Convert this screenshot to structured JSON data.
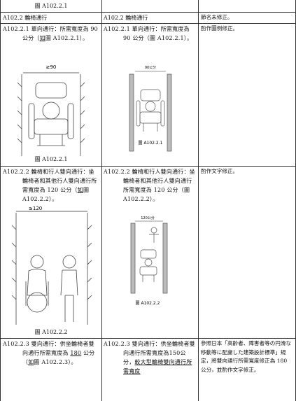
{
  "table": {
    "rows": [
      {
        "old": {
          "caption": "圖 A102.2.1"
        }
      },
      {
        "old": {
          "text": "A102.2 輪椅通行"
        },
        "new": {
          "text": "A102.2 輪椅通行"
        },
        "note": "節名未修正。"
      },
      {
        "old": {
          "segments": [
            "A102.2.1 單向通行：所需寬度為 90 公分（",
            "如",
            "圖 A102.2.1）。"
          ],
          "figure_label": "≥90",
          "caption": "圖 A102.2.1"
        },
        "new": {
          "segments": [
            "A102.2.1 單向通行：所需寬度為 90 公分（圖 A102.2.1）。"
          ],
          "figure_label": "90公分",
          "caption": "圖 A102.2.1"
        },
        "note": "酌作圖例修正。"
      },
      {
        "old": {
          "segments": [
            "A102.2.2 輪椅和行人雙向通行：坐輪椅者和其他行人雙向通行所需寬度為 120 公分（",
            "如",
            "圖 A102.2.2）。"
          ],
          "figure_label": "≥120",
          "caption": "圖 A102.2.2"
        },
        "new": {
          "segments": [
            "A102.2.2 輪椅和行人雙向通行：坐輪椅者和其他行人雙向通行所需寬度為 120 公分（圖 A102.2.2）。"
          ],
          "figure_label": "120公分",
          "caption": "圖 A102.2.2"
        },
        "note": "酌作文字修正。"
      },
      {
        "old": {
          "segments": [
            "A102.2.3 雙向通行：供坐輪椅者雙向通行所需寬度為 ",
            "180",
            " 公分（",
            "如",
            "圖 A102.2.3）。"
          ]
        },
        "new": {
          "segments": [
            "A102.2.3 雙向通行：供坐輪椅者雙向通行所需寬度為150公分，",
            "較大型輪椅雙向通行所需寬度"
          ]
        },
        "note": "參照日本「高齡者、障害者等の円滑な移動等に配慮した建築設計標準」規定，將雙向通行所需寬度修正為 180 公分，並酌作文字修正。"
      }
    ]
  }
}
